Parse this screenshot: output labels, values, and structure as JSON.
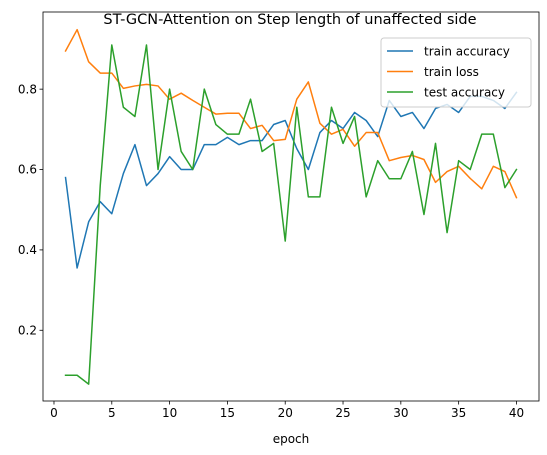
{
  "chart_data": {
    "type": "line",
    "title": "ST-GCN-Attention on Step length of unaffected side",
    "xlabel": "epoch",
    "ylabel": "",
    "xlim": [
      -0.95,
      41.95
    ],
    "ylim": [
      0.024,
      0.992
    ],
    "xticks": [
      0,
      5,
      10,
      15,
      20,
      25,
      30,
      35,
      40
    ],
    "yticks": [
      0.2,
      0.4,
      0.6,
      0.8
    ],
    "grid": false,
    "legend_position": "top-right",
    "x": [
      1,
      2,
      3,
      4,
      5,
      6,
      7,
      8,
      9,
      10,
      11,
      12,
      13,
      14,
      15,
      16,
      17,
      18,
      19,
      20,
      21,
      22,
      23,
      24,
      25,
      26,
      27,
      28,
      29,
      30,
      31,
      32,
      33,
      34,
      35,
      36,
      37,
      38,
      39,
      40
    ],
    "series": [
      {
        "name": "train accuracy",
        "color": "#1f77b4",
        "values": [
          0.58,
          0.355,
          0.47,
          0.52,
          0.49,
          0.59,
          0.662,
          0.56,
          0.59,
          0.632,
          0.6,
          0.6,
          0.662,
          0.662,
          0.68,
          0.662,
          0.672,
          0.672,
          0.712,
          0.722,
          0.652,
          0.6,
          0.692,
          0.722,
          0.702,
          0.742,
          0.722,
          0.682,
          0.772,
          0.732,
          0.742,
          0.702,
          0.752,
          0.762,
          0.742,
          0.782,
          0.782,
          0.772,
          0.752,
          0.792
        ]
      },
      {
        "name": "train loss",
        "color": "#ff7f0e",
        "values": [
          0.895,
          0.948,
          0.868,
          0.84,
          0.84,
          0.802,
          0.808,
          0.812,
          0.808,
          0.775,
          0.79,
          0.772,
          0.755,
          0.738,
          0.74,
          0.74,
          0.702,
          0.71,
          0.672,
          0.675,
          0.775,
          0.818,
          0.715,
          0.688,
          0.7,
          0.658,
          0.692,
          0.692,
          0.622,
          0.63,
          0.635,
          0.625,
          0.568,
          0.595,
          0.608,
          0.578,
          0.552,
          0.608,
          0.595,
          0.53
        ]
      },
      {
        "name": "test accuracy",
        "color": "#2ca02c",
        "values": [
          0.088,
          0.088,
          0.066,
          0.56,
          0.91,
          0.755,
          0.732,
          0.91,
          0.6,
          0.8,
          0.645,
          0.6,
          0.8,
          0.712,
          0.688,
          0.688,
          0.775,
          0.645,
          0.665,
          0.422,
          0.755,
          0.532,
          0.532,
          0.755,
          0.665,
          0.732,
          0.532,
          0.622,
          0.577,
          0.577,
          0.645,
          0.488,
          0.665,
          0.443,
          0.622,
          0.6,
          0.688,
          0.688,
          0.555,
          0.6
        ]
      }
    ]
  }
}
